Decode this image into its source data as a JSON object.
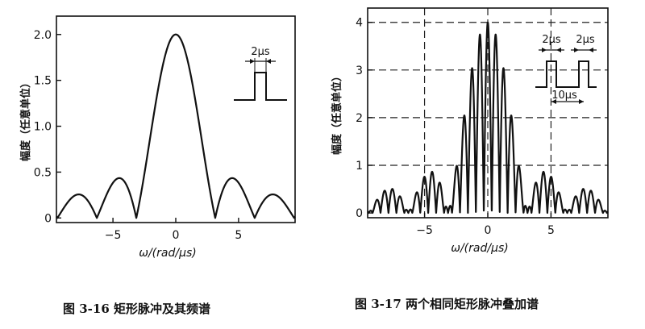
{
  "chart_data": [
    {
      "type": "line",
      "function": "2*|sinc(omega)|",
      "x_range": [
        -9.5,
        9.5
      ],
      "ylim": [
        -0.05,
        2.2
      ],
      "xticks": [
        -5,
        0,
        5
      ],
      "xtick_labels": [
        "−5",
        "0",
        "5"
      ],
      "yticks": [
        0,
        0.5,
        1.0,
        1.5,
        2.0
      ],
      "ytick_labels": [
        "0",
        "0.5",
        "1.0",
        "1.5",
        "2.0"
      ],
      "xlabel": "ω/(rad/μs)",
      "ylabel": "幅度（任意单位）",
      "grid": false,
      "peak_value": 2.0,
      "inset": {
        "label": "2μs",
        "shape": "single-rectangular-pulse"
      },
      "caption": "图 3-16   矩形脉冲及其频谱"
    },
    {
      "type": "line",
      "function": "2*|sinc(omega)|*|2*cos(5*omega)|",
      "x_range": [
        -9.5,
        9.5
      ],
      "ylim": [
        -0.1,
        4.3
      ],
      "xticks": [
        -5,
        0,
        5
      ],
      "xtick_labels": [
        "−5",
        "0",
        "5"
      ],
      "yticks": [
        0,
        1,
        2,
        3,
        4
      ],
      "ytick_labels": [
        "0",
        "1",
        "2",
        "3",
        "4"
      ],
      "xlabel": "ω/(rad/μs)",
      "ylabel": "幅度（任意单位）",
      "grid": true,
      "peak_value": 4.0,
      "inset": {
        "labels": [
          "2μs",
          "2μs",
          "10μs"
        ],
        "shape": "two-rectangular-pulses"
      },
      "caption": "图 3-17   两个相同矩形脉冲叠加谱"
    }
  ]
}
